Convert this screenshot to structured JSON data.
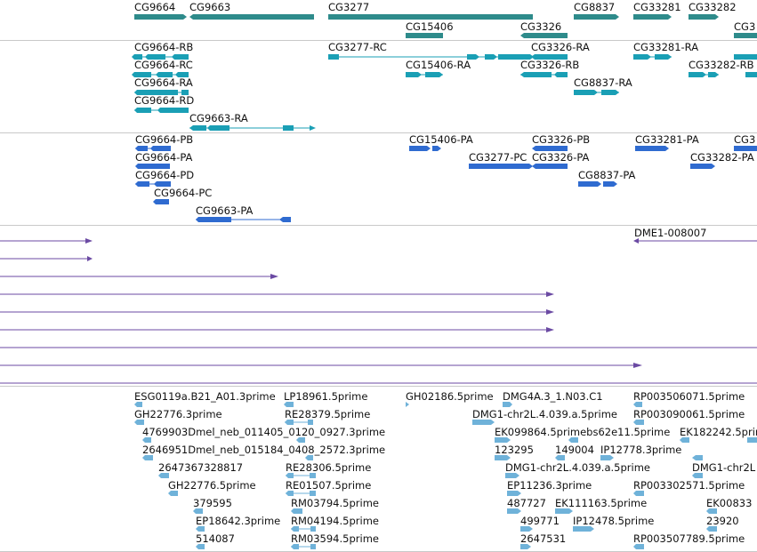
{
  "colors": {
    "gene": "#2e8b8b",
    "transcript": "#1a9fb5",
    "protein": "#2f6bd0",
    "alignment": "#6b4aa3",
    "est": "#6fb2d9",
    "divider": "#c9c9c9"
  },
  "tracks": {
    "genes": [
      {
        "label": "CG9664"
      },
      {
        "label": "CG9663"
      },
      {
        "label": "CG3277"
      },
      {
        "label": "CG15406"
      },
      {
        "label": "CG3326"
      },
      {
        "label": "CG8837"
      },
      {
        "label": "CG33281"
      },
      {
        "label": "CG33282"
      },
      {
        "label": "CG3"
      }
    ],
    "transcripts": [
      {
        "label": "CG9664-RB"
      },
      {
        "label": "CG9664-RC"
      },
      {
        "label": "CG9664-RA"
      },
      {
        "label": "CG9664-RD"
      },
      {
        "label": "CG9663-RA"
      },
      {
        "label": "CG3277-RC"
      },
      {
        "label": "CG15406-RA"
      },
      {
        "label": "CG3326-RA"
      },
      {
        "label": "CG3326-RB"
      },
      {
        "label": "CG8837-RA"
      },
      {
        "label": "CG33281-RA"
      },
      {
        "label": "CG33282-RB"
      }
    ],
    "proteins": [
      {
        "label": "CG9664-PB"
      },
      {
        "label": "CG9664-PA"
      },
      {
        "label": "CG9664-PD"
      },
      {
        "label": "CG9664-PC"
      },
      {
        "label": "CG9663-PA"
      },
      {
        "label": "CG15406-PA"
      },
      {
        "label": "CG3277-PC"
      },
      {
        "label": "CG3326-PB"
      },
      {
        "label": "CG3326-PA"
      },
      {
        "label": "CG8837-PA"
      },
      {
        "label": "CG33281-PA"
      },
      {
        "label": "CG33282-PA"
      },
      {
        "label": "CG3"
      }
    ],
    "alignments": [
      {
        "label": "DME1-008007"
      }
    ],
    "ests": [
      {
        "label": "ESG0119a.B21_A01.3prime"
      },
      {
        "label": "LP18961.5prime"
      },
      {
        "label": "GH02186.5prime"
      },
      {
        "label": "DMG4A.3_1.N03.C1"
      },
      {
        "label": "RP003506071.5prime"
      },
      {
        "label": "GH22776.3prime"
      },
      {
        "label": "RE28379.5prime"
      },
      {
        "label": "DMG1-chr2L.4.039.a.5prime"
      },
      {
        "label": "RP003090061.5prime"
      },
      {
        "label": "4769903Dmel_neb_011405_0120_0927.3prime"
      },
      {
        "label": "EK099864.5primebs62e11.5prime"
      },
      {
        "label": "EK182242.5prime"
      },
      {
        "label": "2646951Dmel_neb_015184_0408_2572.3prime"
      },
      {
        "label": "123295"
      },
      {
        "label": "149004"
      },
      {
        "label": "IP12778.3prime"
      },
      {
        "label": "2647367328817"
      },
      {
        "label": "RE28306.5prime"
      },
      {
        "label": "DMG1-chr2L.4.039.a.5prime"
      },
      {
        "label": "DMG1-chr2L"
      },
      {
        "label": "GH22776.5prime"
      },
      {
        "label": "RE01507.5prime"
      },
      {
        "label": "EP11236.3prime"
      },
      {
        "label": "RP003302571.5prime"
      },
      {
        "label": "379595"
      },
      {
        "label": "RM03794.5prime"
      },
      {
        "label": "487727"
      },
      {
        "label": "EK111163.5prime"
      },
      {
        "label": "EK00833"
      },
      {
        "label": "EP18642.3prime"
      },
      {
        "label": "RM04194.5prime"
      },
      {
        "label": "499771"
      },
      {
        "label": "IP12478.5prime"
      },
      {
        "label": "23920"
      },
      {
        "label": "514087"
      },
      {
        "label": "RM03594.5prime"
      },
      {
        "label": "2647531"
      },
      {
        "label": "RP003507789.5prime"
      }
    ]
  }
}
